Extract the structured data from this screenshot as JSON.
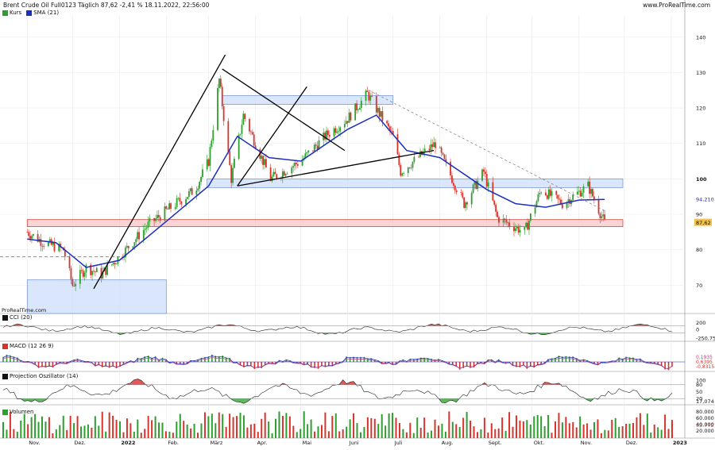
{
  "header": {
    "title": "Brent Crude Oil Full0123 Täglich 87,62 -2,41 % 18.11.2022, 22:56:00",
    "site": "www.ProRealTime.com"
  },
  "legend": {
    "kurs": "Kurs",
    "sma": "SMA (21)",
    "watermark": "ProRealTime.com",
    "cci": "CCI (20)",
    "macd": "MACD (12 26 9)",
    "projection": "Projection Oszillator (14)",
    "volume": "Volumen"
  },
  "colors": {
    "up_candle": "#2e9e2e",
    "down_candle": "#d9342b",
    "sma": "#1b2fbf",
    "zone_blue": "#cdddfa",
    "zone_red": "#f6c6c6",
    "positive_fill": "#e23a3a",
    "negative_fill": "#3fae3f"
  },
  "chart_data": [
    {
      "type": "candlestick",
      "title": "Brent Crude Oil Full0123 Täglich",
      "last_price": 87.62,
      "change_pct": -2.41,
      "ylim": [
        62,
        146
      ],
      "y_ticks": [
        70,
        80,
        90,
        100,
        110,
        120,
        130,
        140
      ],
      "x_labels": [
        "Nov.",
        "Dez.",
        "2022",
        "Feb.",
        "März",
        "Apr.",
        "Mai",
        "Juni",
        "Juli",
        "Aug.",
        "Sept.",
        "Okt.",
        "Nov.",
        "Dez.",
        "2023"
      ],
      "right_labels": {
        "sma": "94,210",
        "last": "87,62"
      },
      "price_path": [
        [
          "2021-11-01",
          85
        ],
        [
          "2021-11-12",
          82
        ],
        [
          "2021-11-25",
          80
        ],
        [
          "2021-12-01",
          70
        ],
        [
          "2021-12-10",
          75
        ],
        [
          "2021-12-20",
          73
        ],
        [
          "2022-01-01",
          78
        ],
        [
          "2022-01-20",
          87
        ],
        [
          "2022-02-01",
          91
        ],
        [
          "2022-02-20",
          97
        ],
        [
          "2022-03-01",
          105
        ],
        [
          "2022-03-08",
          128
        ],
        [
          "2022-03-16",
          100
        ],
        [
          "2022-03-24",
          118
        ],
        [
          "2022-04-11",
          100
        ],
        [
          "2022-05-01",
          105
        ],
        [
          "2022-05-17",
          112
        ],
        [
          "2022-06-01",
          117
        ],
        [
          "2022-06-14",
          124
        ],
        [
          "2022-07-01",
          112
        ],
        [
          "2022-07-06",
          102
        ],
        [
          "2022-07-29",
          110
        ],
        [
          "2022-08-17",
          93
        ],
        [
          "2022-08-30",
          102
        ],
        [
          "2022-09-08",
          89
        ],
        [
          "2022-09-26",
          85
        ],
        [
          "2022-10-07",
          97
        ],
        [
          "2022-10-21",
          93
        ],
        [
          "2022-11-07",
          98
        ],
        [
          "2022-11-18",
          87.62
        ]
      ],
      "sma_path": [
        [
          "2021-11-01",
          83
        ],
        [
          "2021-11-20",
          82
        ],
        [
          "2021-12-10",
          75
        ],
        [
          "2022-01-01",
          77
        ],
        [
          "2022-02-01",
          88
        ],
        [
          "2022-03-01",
          98
        ],
        [
          "2022-03-20",
          112
        ],
        [
          "2022-04-10",
          106
        ],
        [
          "2022-05-01",
          105
        ],
        [
          "2022-06-01",
          114
        ],
        [
          "2022-06-20",
          118
        ],
        [
          "2022-07-10",
          108
        ],
        [
          "2022-08-01",
          106
        ],
        [
          "2022-09-01",
          97
        ],
        [
          "2022-09-20",
          93
        ],
        [
          "2022-10-10",
          92
        ],
        [
          "2022-11-01",
          94
        ],
        [
          "2022-11-18",
          94.21
        ]
      ],
      "zones": [
        {
          "from": "2021-11-01",
          "to": "2022-02-01",
          "low": 62,
          "high": 71.5
        },
        {
          "from": "2022-03-10",
          "to": "2022-07-01",
          "low": 121,
          "high": 123.5
        },
        {
          "from": "2022-02-28",
          "to": "2022-11-30",
          "low": 97.5,
          "high": 100
        },
        {
          "from": "2021-11-01",
          "to": "2022-11-30",
          "low": 86.5,
          "high": 88.5
        }
      ]
    },
    {
      "type": "line",
      "title": "CCI (20)",
      "y_ticks": [
        200,
        0
      ],
      "last_value": "-250,75"
    },
    {
      "type": "line",
      "title": "MACD (12 26 9)",
      "last_values": [
        "0,1935",
        "0,6395",
        "-0,8315"
      ]
    },
    {
      "type": "line",
      "title": "Projection Oszillator (14)",
      "y_ticks": [
        100,
        80,
        50,
        20
      ],
      "last_value": "17,074"
    },
    {
      "type": "bar",
      "title": "Volumen",
      "y_ticks": [
        "80.000",
        "60.000",
        "40.000",
        "20.000"
      ],
      "last_value": "33.772"
    }
  ]
}
